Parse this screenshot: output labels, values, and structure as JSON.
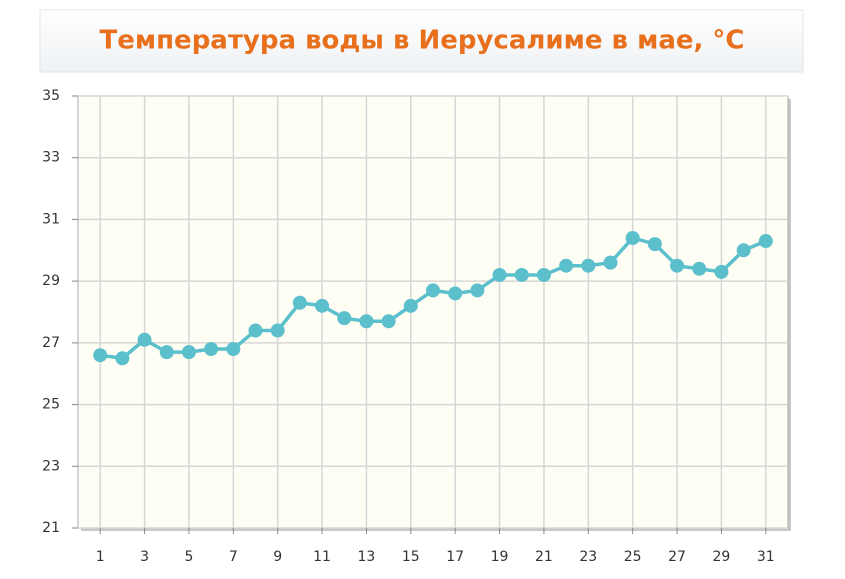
{
  "chart_data": {
    "type": "line",
    "title": "Температура воды в Иерусалиме в мае, °C",
    "x": [
      1,
      2,
      3,
      4,
      5,
      6,
      7,
      8,
      9,
      10,
      11,
      12,
      13,
      14,
      15,
      16,
      17,
      18,
      19,
      20,
      21,
      22,
      23,
      24,
      25,
      26,
      27,
      28,
      29,
      30,
      31
    ],
    "values": [
      26.6,
      26.5,
      27.1,
      26.7,
      26.7,
      26.8,
      26.8,
      27.4,
      27.4,
      28.3,
      28.2,
      27.8,
      27.7,
      27.7,
      28.2,
      28.7,
      28.6,
      28.7,
      29.2,
      29.2,
      29.2,
      29.5,
      29.5,
      29.6,
      30.4,
      30.2,
      29.5,
      29.4,
      29.3,
      30.0,
      30.3
    ],
    "color": "#5bbfcc",
    "xlim": [
      0,
      32
    ],
    "xticks": [
      1,
      3,
      5,
      7,
      9,
      11,
      13,
      15,
      17,
      19,
      21,
      23,
      25,
      27,
      29,
      31
    ],
    "ylim": [
      21,
      35
    ],
    "yticks": [
      21,
      23,
      25,
      27,
      29,
      31,
      33,
      35
    ],
    "grid": true
  }
}
